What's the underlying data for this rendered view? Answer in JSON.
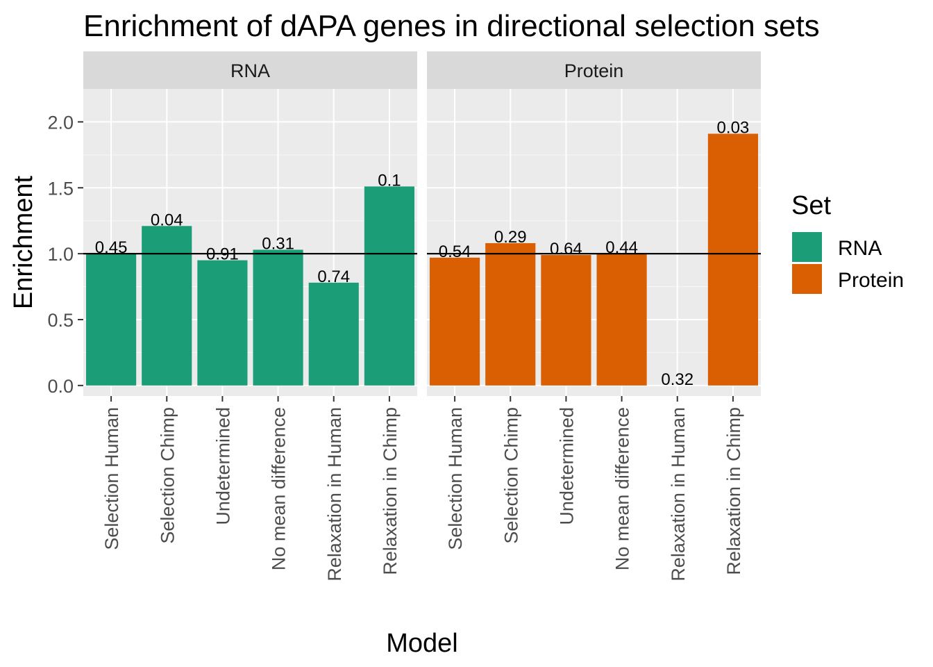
{
  "chart_data": {
    "type": "bar",
    "title": "Enrichment of dAPA genes in directional selection sets",
    "xlabel": "Model",
    "ylabel": "Enrichment",
    "ylim": [
      -0.08,
      2.25
    ],
    "yticks": [
      "0.0",
      "0.5",
      "1.0",
      "1.5",
      "2.0"
    ],
    "reference_line": 1.0,
    "grid": true,
    "legend_position": "right",
    "legend_title": "Set",
    "categories": [
      "Selection Human",
      "Selection Chimp",
      "Undetermined",
      "No mean difference",
      "Relaxation in Human",
      "Relaxation in Chimp"
    ],
    "series": [
      {
        "name": "RNA",
        "color": "#1b9e77",
        "values": [
          1.0,
          1.21,
          0.95,
          1.03,
          0.78,
          1.51
        ],
        "labels": [
          "0.45",
          "0.04",
          "0.91",
          "0.31",
          "0.74",
          "0.1"
        ]
      },
      {
        "name": "Protein",
        "color": "#d95f02",
        "values": [
          0.97,
          1.08,
          0.99,
          1.0,
          0.0,
          1.91
        ],
        "labels": [
          "0.54",
          "0.29",
          "0.64",
          "0.44",
          "0.32",
          "0.03"
        ]
      }
    ]
  }
}
